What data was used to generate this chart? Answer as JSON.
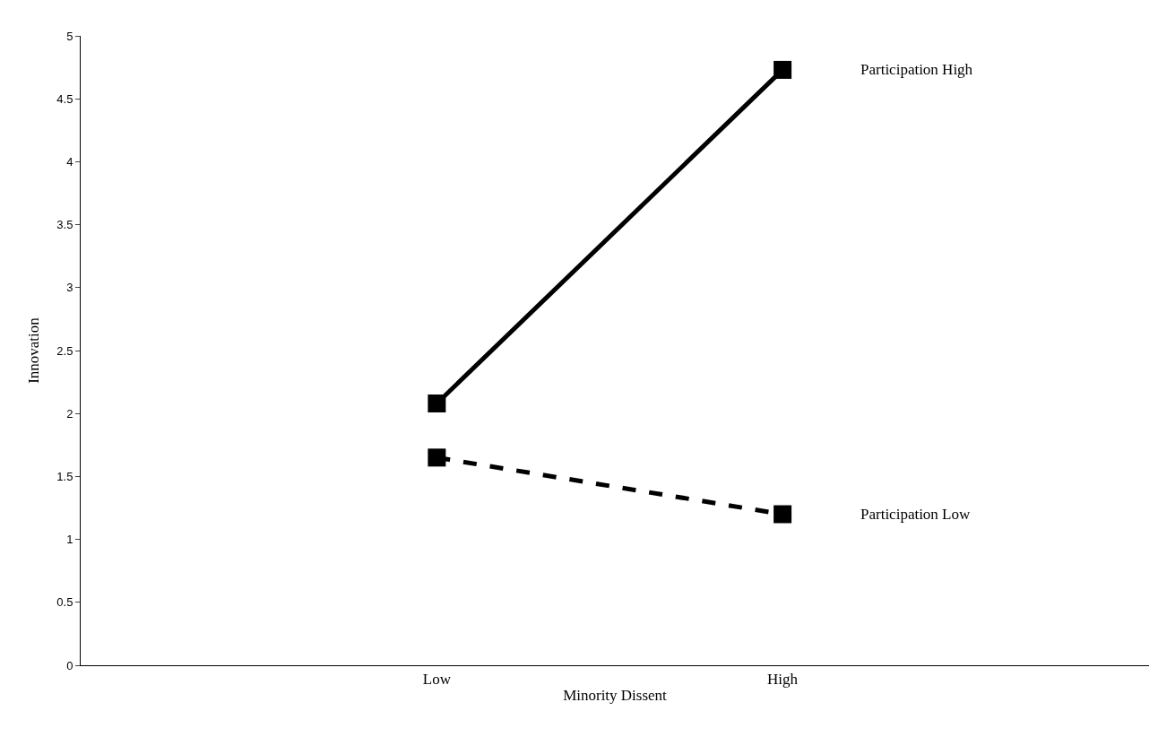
{
  "chart_data": {
    "type": "line",
    "xlabel": "Minority Dissent",
    "ylabel": "Innovation",
    "categories": [
      "Low",
      "High"
    ],
    "series": [
      {
        "name": "Participation High",
        "color": "#000000",
        "values": [
          2.08,
          4.73
        ],
        "line_style": "solid"
      },
      {
        "name": "Participation Low",
        "color": "#000000",
        "values": [
          1.65,
          1.2
        ],
        "line_style": "dashed"
      }
    ],
    "ylim": [
      0,
      5
    ],
    "yticks": [
      0,
      0.5,
      1,
      1.5,
      2,
      2.5,
      3,
      3.5,
      4,
      4.5,
      5
    ],
    "marker": "square",
    "legend": false
  }
}
